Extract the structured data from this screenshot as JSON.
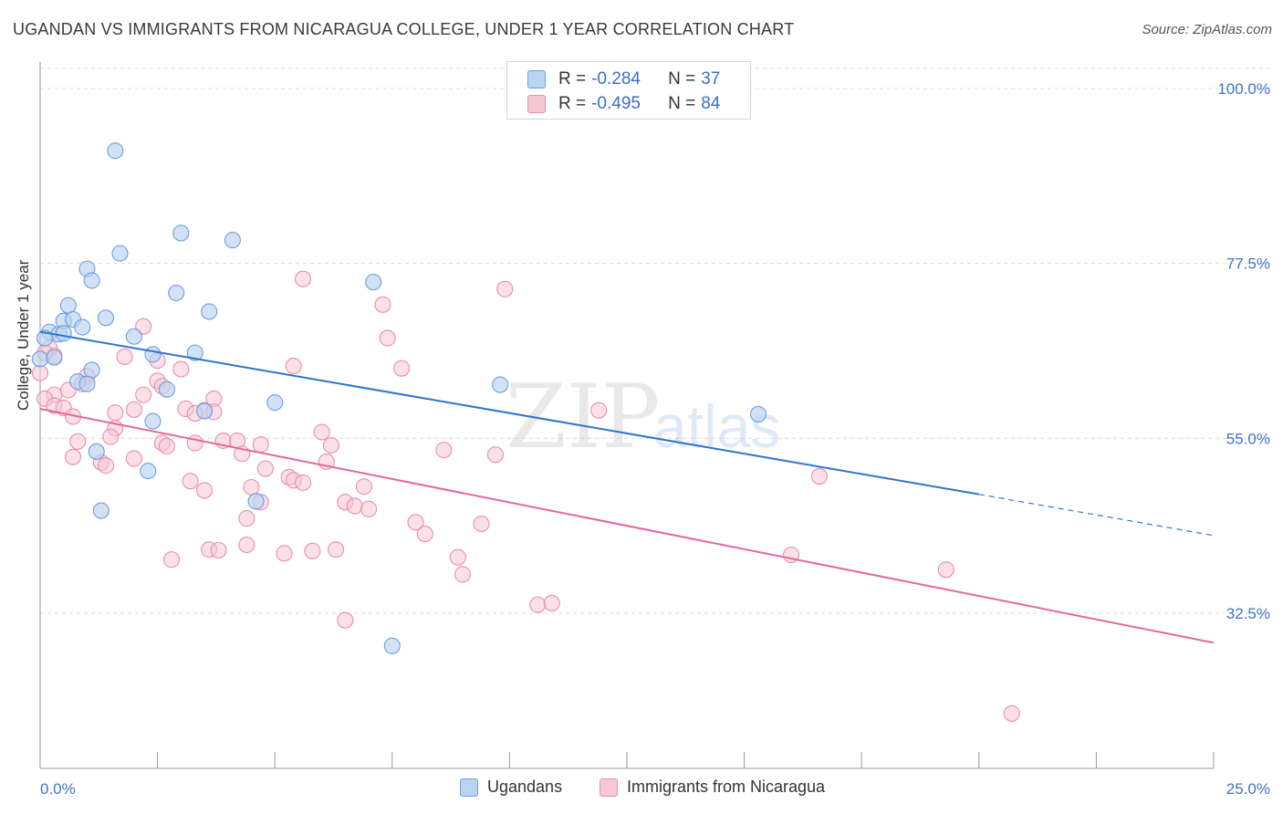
{
  "title": "UGANDAN VS IMMIGRANTS FROM NICARAGUA COLLEGE, UNDER 1 YEAR CORRELATION CHART",
  "source": "Source: ZipAtlas.com",
  "watermark": {
    "zip": "ZIP",
    "atlas": "atlas"
  },
  "legend_top": {
    "rows": [
      {
        "r_label": "R =",
        "r_value": "-0.284",
        "n_label": "N =",
        "n_value": "37"
      },
      {
        "r_label": "R =",
        "r_value": "-0.495",
        "n_label": "N =",
        "n_value": "84"
      }
    ]
  },
  "legend_bottom": {
    "items": [
      {
        "label": "Ugandans"
      },
      {
        "label": "Immigrants from Nicaragua"
      }
    ]
  },
  "colors": {
    "blue_fill": "#b9d3f2",
    "blue_stroke": "#6f9fdc",
    "blue_line": "#2f74d0",
    "pink_fill": "#f7c7d6",
    "pink_stroke": "#e98fac",
    "pink_line": "#e4689a",
    "axis_text": "#3f73c8",
    "grid": "#dcdcdc"
  },
  "chart_data": {
    "type": "scatter",
    "title": "UGANDAN VS IMMIGRANTS FROM NICARAGUA COLLEGE, UNDER 1 YEAR CORRELATION CHART",
    "xlabel": "",
    "ylabel": "College, Under 1 year",
    "xlim": [
      0,
      25
    ],
    "ylim": [
      10,
      105
    ],
    "x_tick_labels": [
      "0.0%",
      "25.0%"
    ],
    "y_ticks": [
      100,
      77.5,
      55,
      32.5
    ],
    "y_tick_labels": [
      "100.0%",
      "77.5%",
      "55.0%",
      "32.5%"
    ],
    "legend_position": "top-center",
    "series": [
      {
        "name": "Ugandans",
        "R": -0.284,
        "N": 37,
        "trend": {
          "x0": 0,
          "y0": 68.7,
          "x1": 20.0,
          "y1": 47.8,
          "dash_to_x": 25.0,
          "dash_to_y": 42.5
        },
        "points": [
          [
            1.6,
            92.0
          ],
          [
            3.0,
            81.4
          ],
          [
            4.1,
            80.5
          ],
          [
            1.7,
            78.8
          ],
          [
            1.0,
            76.8
          ],
          [
            1.1,
            75.3
          ],
          [
            7.1,
            75.1
          ],
          [
            2.9,
            73.7
          ],
          [
            0.6,
            72.1
          ],
          [
            3.6,
            71.3
          ],
          [
            1.4,
            70.5
          ],
          [
            0.5,
            70.1
          ],
          [
            0.7,
            70.3
          ],
          [
            0.9,
            69.3
          ],
          [
            0.2,
            68.7
          ],
          [
            0.4,
            68.4
          ],
          [
            0.5,
            68.5
          ],
          [
            2.0,
            68.1
          ],
          [
            0.1,
            67.9
          ],
          [
            2.4,
            65.8
          ],
          [
            3.3,
            66.0
          ],
          [
            0.0,
            65.2
          ],
          [
            0.3,
            65.4
          ],
          [
            1.1,
            63.8
          ],
          [
            0.8,
            62.3
          ],
          [
            1.0,
            62.0
          ],
          [
            2.7,
            61.3
          ],
          [
            9.8,
            61.9
          ],
          [
            5.0,
            59.6
          ],
          [
            3.5,
            58.5
          ],
          [
            15.3,
            58.1
          ],
          [
            2.4,
            57.2
          ],
          [
            1.2,
            53.3
          ],
          [
            2.3,
            50.8
          ],
          [
            4.6,
            46.9
          ],
          [
            1.3,
            45.7
          ],
          [
            7.5,
            28.3
          ]
        ]
      },
      {
        "name": "Immigrants from Nicaragua",
        "R": -0.495,
        "N": 84,
        "trend": {
          "x0": 0,
          "y0": 58.8,
          "x1": 25.0,
          "y1": 28.7
        },
        "points": [
          [
            5.6,
            75.5
          ],
          [
            9.9,
            74.2
          ],
          [
            7.3,
            72.2
          ],
          [
            2.2,
            69.4
          ],
          [
            7.4,
            67.9
          ],
          [
            0.2,
            66.6
          ],
          [
            0.3,
            65.6
          ],
          [
            1.8,
            65.5
          ],
          [
            2.5,
            65.0
          ],
          [
            5.4,
            64.3
          ],
          [
            7.7,
            64.0
          ],
          [
            3.0,
            63.9
          ],
          [
            0.0,
            63.4
          ],
          [
            1.0,
            63.0
          ],
          [
            0.9,
            62.0
          ],
          [
            2.5,
            62.4
          ],
          [
            2.6,
            61.7
          ],
          [
            0.3,
            60.6
          ],
          [
            0.6,
            61.2
          ],
          [
            2.2,
            60.6
          ],
          [
            3.7,
            60.1
          ],
          [
            0.1,
            60.1
          ],
          [
            0.3,
            59.2
          ],
          [
            3.1,
            58.8
          ],
          [
            3.5,
            58.6
          ],
          [
            0.5,
            58.9
          ],
          [
            3.3,
            58.2
          ],
          [
            3.7,
            58.4
          ],
          [
            2.0,
            58.7
          ],
          [
            1.6,
            58.3
          ],
          [
            11.9,
            58.6
          ],
          [
            0.7,
            57.8
          ],
          [
            1.6,
            56.3
          ],
          [
            6.0,
            55.8
          ],
          [
            1.5,
            55.2
          ],
          [
            0.8,
            54.6
          ],
          [
            3.9,
            54.7
          ],
          [
            4.2,
            54.7
          ],
          [
            2.6,
            54.4
          ],
          [
            3.3,
            54.4
          ],
          [
            4.7,
            54.2
          ],
          [
            2.7,
            54.0
          ],
          [
            6.2,
            54.1
          ],
          [
            8.6,
            53.5
          ],
          [
            4.3,
            53.0
          ],
          [
            0.7,
            52.6
          ],
          [
            2.0,
            52.4
          ],
          [
            6.1,
            52.0
          ],
          [
            1.3,
            51.9
          ],
          [
            1.4,
            51.5
          ],
          [
            9.7,
            52.9
          ],
          [
            4.8,
            51.1
          ],
          [
            5.3,
            50.0
          ],
          [
            5.4,
            49.6
          ],
          [
            3.2,
            49.5
          ],
          [
            5.6,
            49.3
          ],
          [
            6.9,
            48.8
          ],
          [
            4.5,
            48.7
          ],
          [
            3.5,
            48.3
          ],
          [
            16.6,
            50.1
          ],
          [
            6.5,
            46.8
          ],
          [
            4.7,
            46.8
          ],
          [
            6.7,
            46.3
          ],
          [
            7.0,
            45.9
          ],
          [
            4.4,
            44.7
          ],
          [
            8.0,
            44.2
          ],
          [
            9.4,
            44.0
          ],
          [
            8.2,
            42.7
          ],
          [
            4.4,
            41.3
          ],
          [
            3.6,
            40.7
          ],
          [
            3.8,
            40.6
          ],
          [
            6.3,
            40.7
          ],
          [
            5.2,
            40.2
          ],
          [
            5.8,
            40.5
          ],
          [
            8.9,
            39.7
          ],
          [
            2.8,
            39.4
          ],
          [
            16.0,
            40.0
          ],
          [
            19.3,
            38.1
          ],
          [
            9.0,
            37.5
          ],
          [
            10.6,
            33.6
          ],
          [
            10.9,
            33.8
          ],
          [
            6.5,
            31.6
          ],
          [
            20.7,
            19.6
          ],
          [
            0.1,
            66.0
          ]
        ]
      }
    ]
  }
}
